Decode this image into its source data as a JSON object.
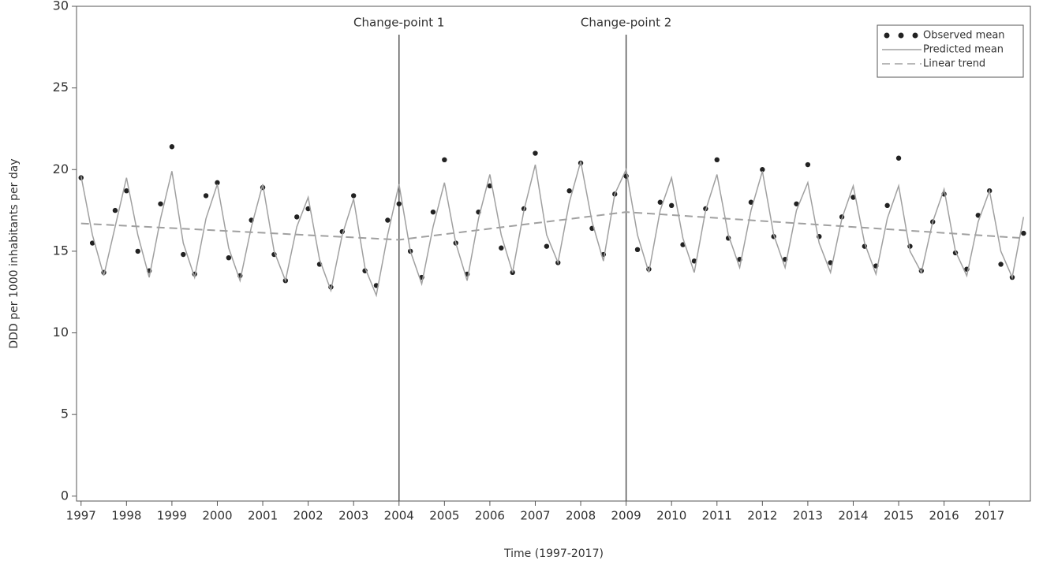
{
  "chart_data": {
    "type": "line",
    "x_label": "Time (1997-2017)",
    "y_label": "DDD per 1000 inhabitants per day",
    "xlim": [
      1996.9,
      2017.9
    ],
    "xticks": [
      1997,
      1998,
      1999,
      2000,
      2001,
      2002,
      2003,
      2004,
      2005,
      2006,
      2007,
      2008,
      2009,
      2010,
      2011,
      2012,
      2013,
      2014,
      2015,
      2016,
      2017
    ],
    "ylim": [
      -0.3,
      30
    ],
    "yticks": [
      0,
      5,
      10,
      15,
      20,
      25,
      30
    ],
    "x": [
      1997,
      1997.25,
      1997.5,
      1997.75,
      1998,
      1998.25,
      1998.5,
      1998.75,
      1999,
      1999.25,
      1999.5,
      1999.75,
      2000,
      2000.25,
      2000.5,
      2000.75,
      2001,
      2001.25,
      2001.5,
      2001.75,
      2002,
      2002.25,
      2002.5,
      2002.75,
      2003,
      2003.25,
      2003.5,
      2003.75,
      2004,
      2004.25,
      2004.5,
      2004.75,
      2005,
      2005.25,
      2005.5,
      2005.75,
      2006,
      2006.25,
      2006.5,
      2006.75,
      2007,
      2007.25,
      2007.5,
      2007.75,
      2008,
      2008.25,
      2008.5,
      2008.75,
      2009,
      2009.25,
      2009.5,
      2009.75,
      2010,
      2010.25,
      2010.5,
      2010.75,
      2011,
      2011.25,
      2011.5,
      2011.75,
      2012,
      2012.25,
      2012.5,
      2012.75,
      2013,
      2013.25,
      2013.5,
      2013.75,
      2014,
      2014.25,
      2014.5,
      2014.75,
      2015,
      2015.25,
      2015.5,
      2015.75,
      2016,
      2016.25,
      2016.5,
      2016.75,
      2017,
      2017.25,
      2017.5,
      2017.75
    ],
    "series": [
      {
        "name": "Observed mean",
        "color": "#222222",
        "style": "markers",
        "values": [
          19.5,
          15.5,
          13.7,
          17.5,
          18.7,
          15.0,
          13.8,
          17.9,
          21.4,
          14.8,
          13.6,
          18.4,
          19.2,
          14.6,
          13.5,
          16.9,
          18.9,
          14.8,
          13.2,
          17.1,
          17.6,
          14.2,
          12.8,
          16.2,
          18.4,
          13.8,
          12.9,
          16.9,
          17.9,
          15.0,
          13.4,
          17.4,
          20.6,
          15.5,
          13.6,
          17.4,
          19.0,
          15.2,
          13.7,
          17.6,
          21.0,
          15.3,
          14.3,
          18.7,
          20.4,
          16.4,
          14.8,
          18.5,
          19.6,
          15.1,
          13.9,
          18.0,
          17.8,
          15.4,
          14.4,
          17.6,
          20.6,
          15.8,
          14.5,
          18.0,
          20.0,
          15.9,
          14.5,
          17.9,
          20.3,
          15.9,
          14.3,
          17.1,
          18.3,
          15.3,
          14.1,
          17.8,
          20.7,
          15.3,
          13.8,
          16.8,
          18.5,
          14.9,
          13.9,
          17.2,
          18.7,
          14.2,
          13.4,
          16.1
        ]
      },
      {
        "name": "Predicted mean",
        "color": "#a0a0a0",
        "style": "solid",
        "values": [
          19.6,
          16.0,
          13.5,
          16.5,
          19.5,
          16.0,
          13.4,
          17.0,
          19.9,
          15.5,
          13.4,
          17.0,
          19.1,
          15.2,
          13.2,
          16.5,
          19.1,
          15.0,
          13.2,
          16.5,
          18.3,
          14.5,
          12.6,
          16.0,
          18.2,
          14.0,
          12.3,
          16.0,
          19.1,
          15.0,
          13.0,
          16.5,
          19.2,
          15.5,
          13.2,
          17.0,
          19.7,
          16.0,
          13.7,
          17.5,
          20.3,
          16.0,
          14.3,
          18.0,
          20.5,
          16.8,
          14.4,
          18.5,
          20.0,
          16.0,
          13.7,
          17.5,
          19.5,
          15.8,
          13.7,
          17.5,
          19.7,
          16.0,
          14.0,
          17.5,
          19.9,
          16.0,
          14.0,
          17.5,
          19.2,
          15.5,
          13.7,
          17.0,
          19.0,
          15.5,
          13.6,
          17.0,
          19.0,
          15.0,
          13.7,
          16.8,
          18.8,
          15.0,
          13.5,
          16.8,
          18.7,
          15.0,
          13.4,
          17.1
        ]
      },
      {
        "name": "Linear trend",
        "color": "#a0a0a0",
        "style": "dashed",
        "x": [
          1997,
          2004,
          2009,
          2017.75
        ],
        "values": [
          16.7,
          15.7,
          17.4,
          15.8
        ]
      }
    ],
    "annotations": [
      {
        "label": "Change-point 1",
        "x": 2004
      },
      {
        "label": "Change-point 2",
        "x": 2009
      }
    ],
    "legend": "top-right"
  }
}
